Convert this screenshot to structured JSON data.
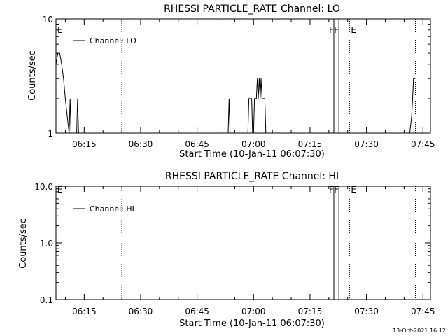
{
  "chart_data": [
    {
      "type": "line",
      "title": "RHESSI PARTICLE_RATE Channel: LO",
      "xlabel": "Start Time (10-Jan-11 06:07:30)",
      "ylabel": "Counts/sec",
      "y_scale": "log",
      "ylim": [
        1,
        10
      ],
      "y_ticks": [
        "1",
        "10"
      ],
      "x_range_minutes": [
        "06:07:30",
        "07:47:00"
      ],
      "x_ticks": [
        "06:15",
        "06:30",
        "06:45",
        "07:00",
        "07:15",
        "07:30",
        "07:45"
      ],
      "legend": {
        "placement": "top-left",
        "entries": [
          "Channel: LO"
        ]
      },
      "grid": false,
      "annotations": [
        {
          "label": "E",
          "time": "06:07:30",
          "style": "marker"
        },
        {
          "label": "",
          "time": "06:25:00",
          "style": "dotted"
        },
        {
          "label": "F",
          "time": "07:21:20",
          "style": "solid"
        },
        {
          "label": "F",
          "time": "07:22:40",
          "style": "solid"
        },
        {
          "label": "E",
          "time": "07:25:30",
          "style": "dotted"
        },
        {
          "label": "",
          "time": "07:43:00",
          "style": "dotted"
        }
      ],
      "series": [
        {
          "name": "Channel: LO",
          "segments": [
            {
              "x": [
                "06:07:30",
                "06:08:00",
                "06:08:30",
                "06:09:00",
                "06:09:30",
                "06:10:00",
                "06:10:30",
                "06:11:00"
              ],
              "y": [
                4,
                5,
                5,
                4,
                3,
                2,
                1.4,
                1
              ]
            },
            {
              "x": [
                "06:11:00",
                "06:11:15",
                "06:11:30"
              ],
              "y": [
                1,
                2,
                1
              ]
            },
            {
              "x": [
                "06:13:00",
                "06:13:15",
                "06:13:30"
              ],
              "y": [
                1,
                2,
                1
              ]
            },
            {
              "x": [
                "06:53:15",
                "06:53:30",
                "06:53:45"
              ],
              "y": [
                1,
                2,
                1
              ]
            },
            {
              "x": [
                "06:58:30",
                "06:58:45",
                "06:59:30",
                "06:59:45"
              ],
              "y": [
                1,
                2,
                2,
                1
              ]
            },
            {
              "x": [
                "07:00:00",
                "07:00:15",
                "07:00:45",
                "07:01:00",
                "07:01:15",
                "07:01:30",
                "07:01:45",
                "07:02:00",
                "07:02:15",
                "07:02:30",
                "07:03:00",
                "07:03:15"
              ],
              "y": [
                1,
                2,
                2,
                3,
                2,
                3,
                2,
                3,
                2,
                2,
                2,
                1
              ]
            },
            {
              "x": [
                "07:41:30",
                "07:42:00",
                "07:42:15",
                "07:42:30",
                "07:43:00"
              ],
              "y": [
                1,
                1.4,
                2,
                3,
                3
              ]
            }
          ]
        }
      ]
    },
    {
      "type": "line",
      "title": "RHESSI PARTICLE_RATE Channel: HI",
      "xlabel": "Start Time (10-Jan-11 06:07:30)",
      "ylabel": "Counts/sec",
      "y_scale": "log",
      "ylim": [
        0.1,
        10
      ],
      "y_ticks": [
        "0.1",
        "1.0",
        "10.0"
      ],
      "x_range_minutes": [
        "06:07:30",
        "07:47:00"
      ],
      "x_ticks": [
        "06:15",
        "06:30",
        "06:45",
        "07:00",
        "07:15",
        "07:30",
        "07:45"
      ],
      "legend": {
        "placement": "top-left",
        "entries": [
          "Channel: HI"
        ]
      },
      "grid": false,
      "annotations": [
        {
          "label": "E",
          "time": "06:07:30",
          "style": "marker"
        },
        {
          "label": "",
          "time": "06:25:00",
          "style": "dotted"
        },
        {
          "label": "F",
          "time": "07:21:20",
          "style": "solid"
        },
        {
          "label": "F",
          "time": "07:22:40",
          "style": "solid"
        },
        {
          "label": "E",
          "time": "07:25:30",
          "style": "dotted"
        },
        {
          "label": "",
          "time": "07:43:00",
          "style": "dotted"
        }
      ],
      "series": [
        {
          "name": "Channel: HI",
          "segments": []
        }
      ]
    }
  ],
  "footer": {
    "timestamp": "13-Oct-2021 16:12"
  }
}
